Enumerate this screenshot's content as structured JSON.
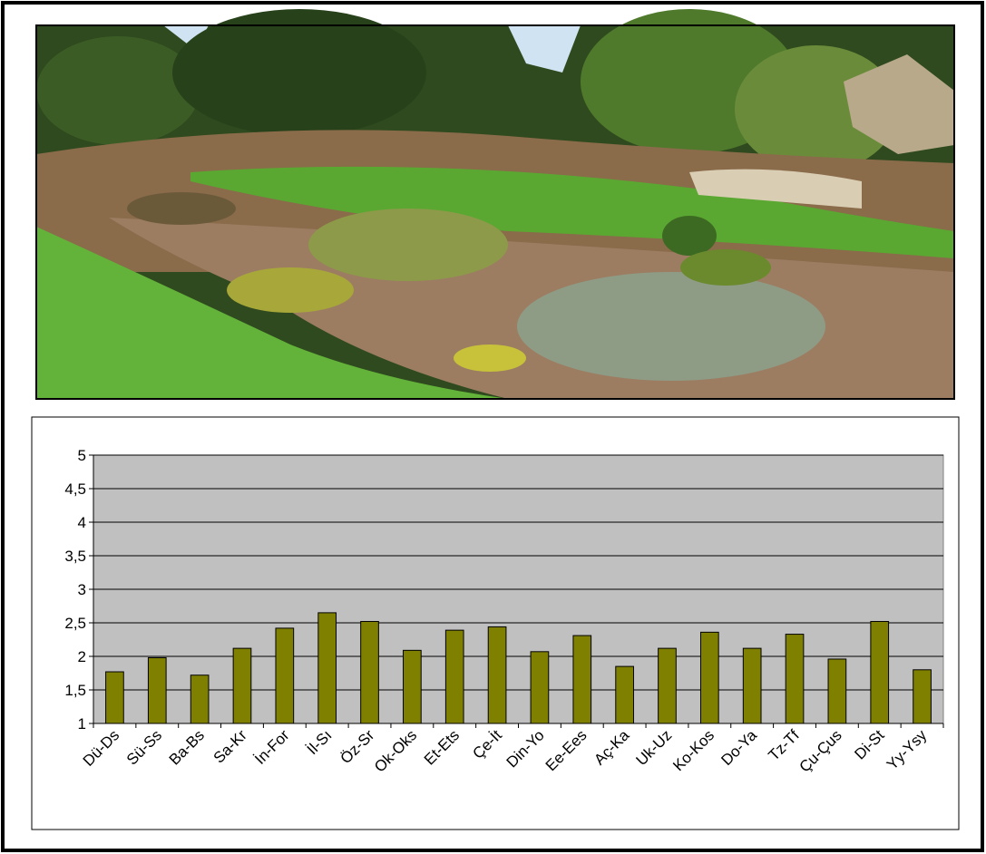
{
  "chart_data": {
    "type": "bar",
    "categories": [
      "Dü-Ds",
      "Sü-Ss",
      "Ba-Bs",
      "Sa-Kr",
      "İn-For",
      "İl-Sı",
      "Öz-Sr",
      "Ok-Oks",
      "Et-Ets",
      "Çe-İt",
      "Din-Yo",
      "Ee-Ees",
      "Aç-Ka",
      "Uk-Uz",
      "Ko-Kos",
      "Do-Ya",
      "Tz-Tf",
      "Çu-Çus",
      "Di-St",
      "Yy-Ysy"
    ],
    "values": [
      1.77,
      1.98,
      1.72,
      2.12,
      2.42,
      2.65,
      2.52,
      2.09,
      2.39,
      2.44,
      2.07,
      2.31,
      1.85,
      2.12,
      2.36,
      2.12,
      2.33,
      1.96,
      2.52,
      1.8
    ],
    "color": "#808000",
    "ylim": [
      1,
      5
    ],
    "yticks": [
      1,
      {
        "value": 1.5,
        "label": "1,5"
      },
      2,
      {
        "value": 2.5,
        "label": "2,5"
      },
      3,
      {
        "value": 3.5,
        "label": "3,5"
      },
      4,
      {
        "value": 4.5,
        "label": "4,5"
      },
      5
    ],
    "grid": true
  }
}
